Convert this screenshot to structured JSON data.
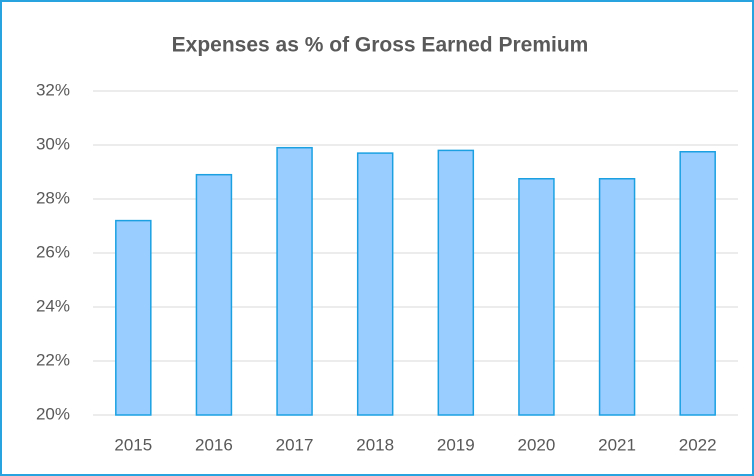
{
  "chart_data": {
    "type": "bar",
    "title": "Expenses as % of Gross Earned Premium",
    "categories": [
      "2015",
      "2016",
      "2017",
      "2018",
      "2019",
      "2020",
      "2021",
      "2022"
    ],
    "values": [
      27.2,
      28.9,
      29.9,
      29.7,
      29.8,
      28.75,
      28.75,
      29.75
    ],
    "color": "#99ccff",
    "edge_color": "#1ba1e2",
    "ylim": [
      20,
      32
    ],
    "yticks": [
      {
        "value": 20,
        "label": "20%"
      },
      {
        "value": 22,
        "label": "22%"
      },
      {
        "value": 24,
        "label": "24%"
      },
      {
        "value": 26,
        "label": "26%"
      },
      {
        "value": 28,
        "label": "28%"
      },
      {
        "value": 30,
        "label": "30%"
      },
      {
        "value": 32,
        "label": "32%"
      }
    ],
    "grid": true
  }
}
